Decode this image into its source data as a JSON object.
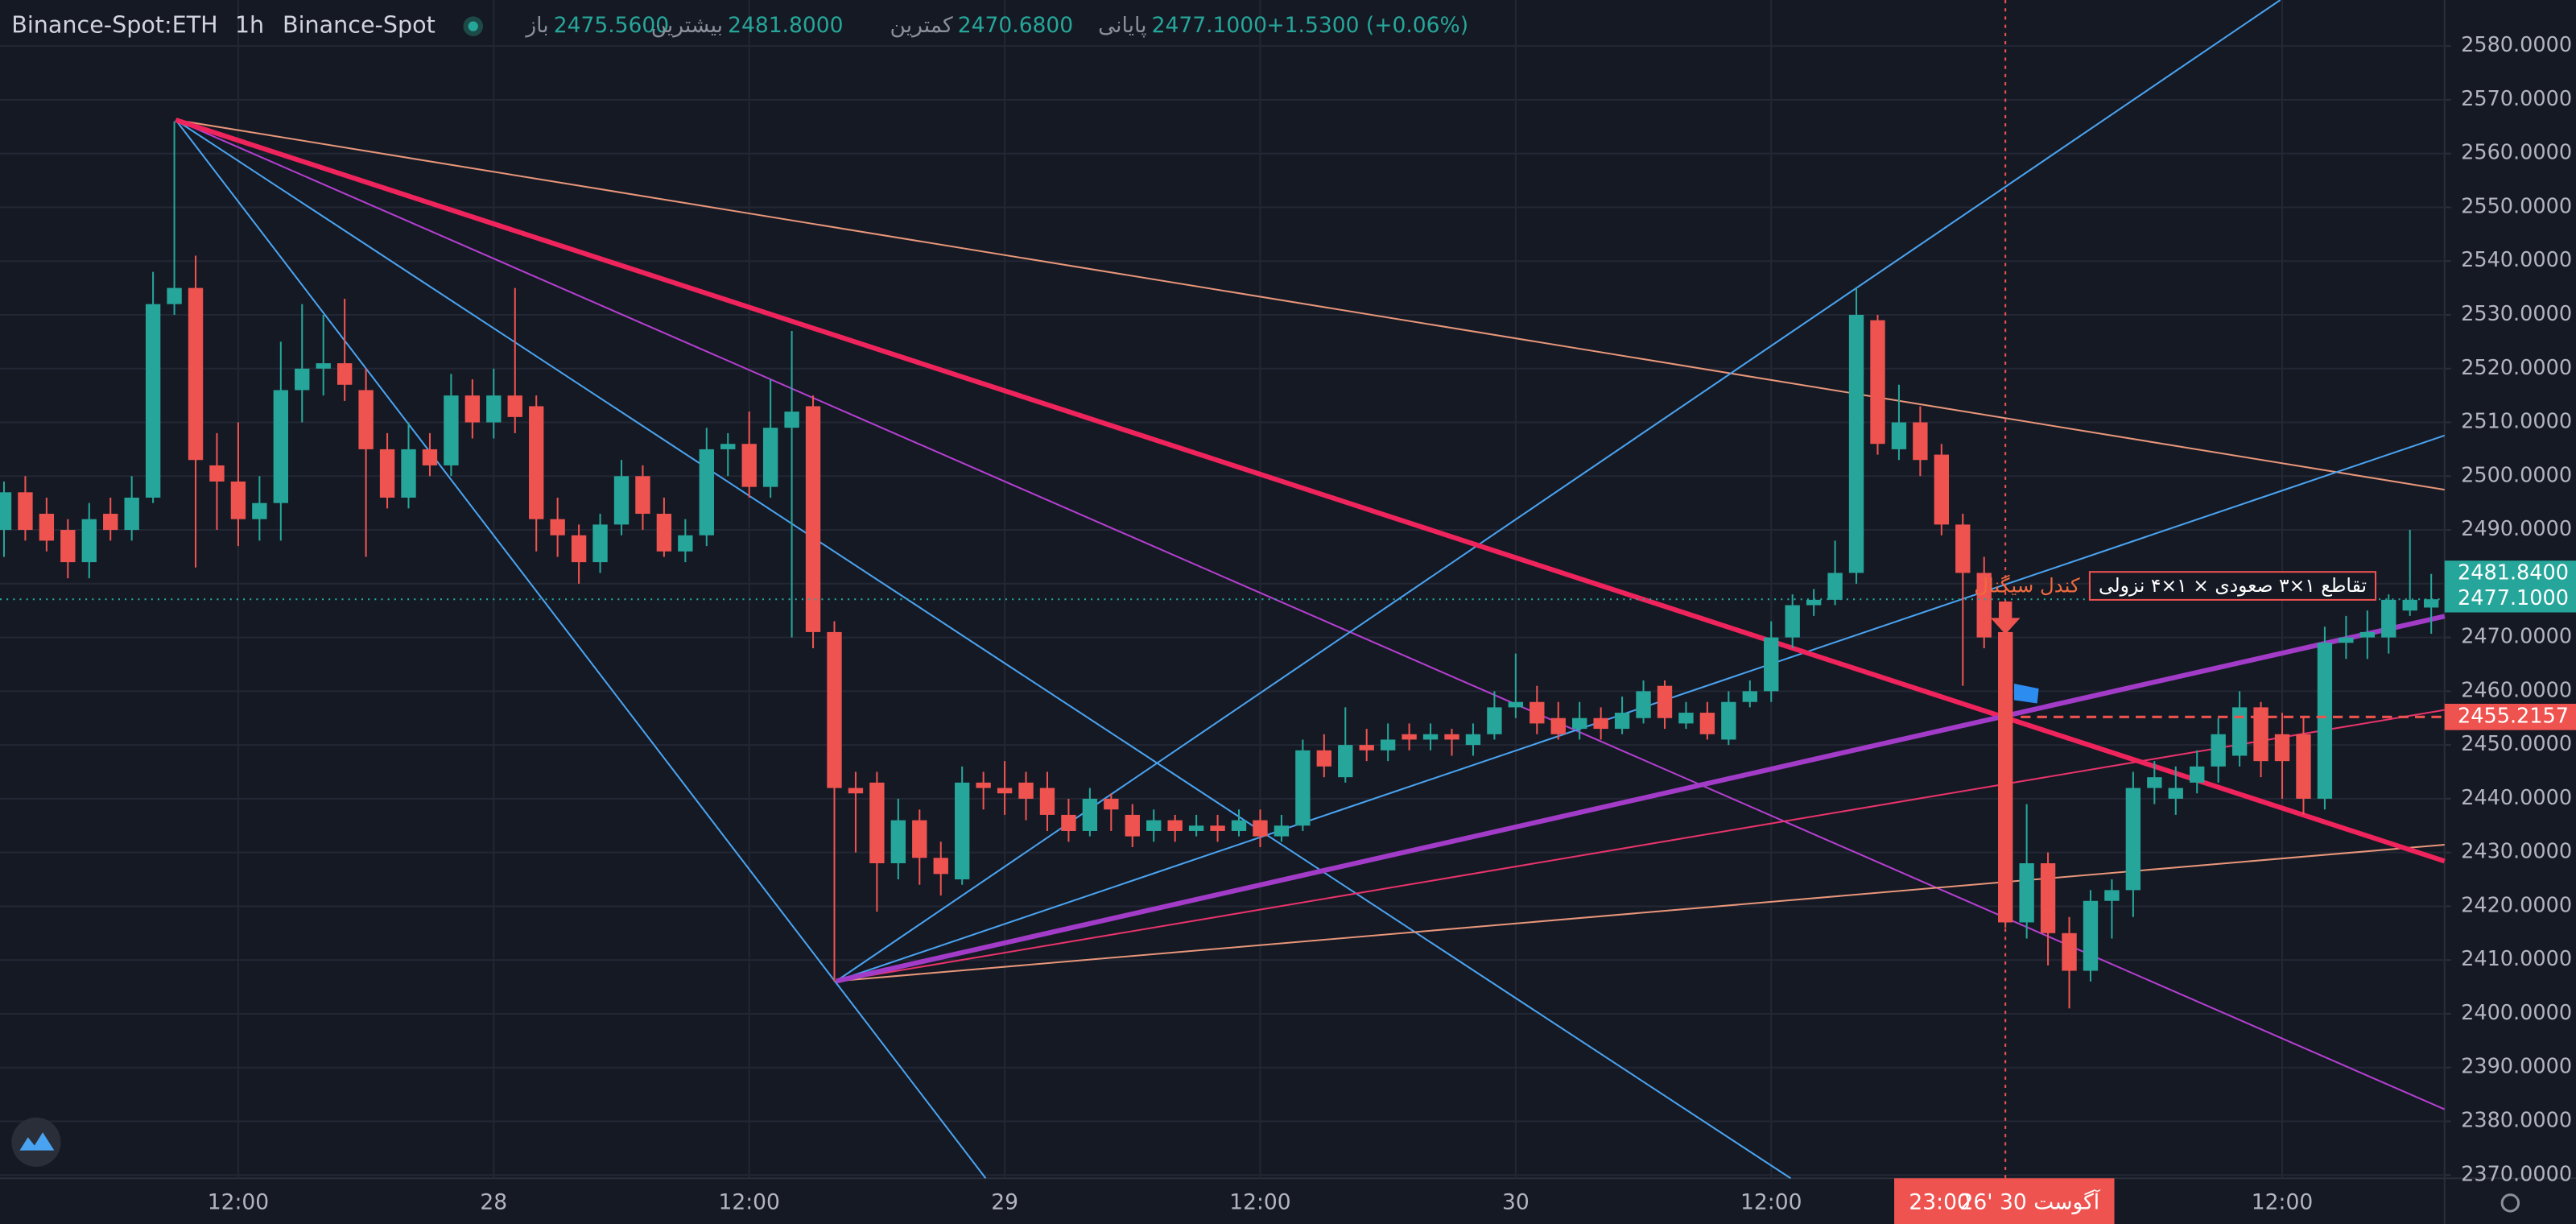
{
  "header": {
    "symbol": "Binance-Spot:ETH",
    "interval": "1h",
    "exchange": "Binance-Spot",
    "open_label": "باز",
    "open": "2475.5600",
    "high_label": "بیشترین",
    "high": "2481.8000",
    "low_label": "کمترین",
    "low": "2470.6800",
    "close_label": "پایانی",
    "close": "2477.1000",
    "change": "+1.5300 (+0.06%)"
  },
  "chart_data": {
    "type": "candlestick",
    "categories": [
      null,
      null,
      null,
      null,
      null,
      null,
      null,
      null,
      null,
      null,
      null,
      "12:00",
      null,
      null,
      null,
      null,
      null,
      null,
      null,
      null,
      null,
      null,
      null,
      "28",
      null,
      null,
      null,
      null,
      null,
      null,
      null,
      null,
      null,
      null,
      null,
      "12:00",
      null,
      null,
      null,
      null,
      null,
      null,
      null,
      null,
      null,
      null,
      null,
      "29",
      null,
      null,
      null,
      null,
      null,
      null,
      null,
      null,
      null,
      null,
      null,
      "12:00",
      null,
      null,
      null,
      null,
      null,
      null,
      null,
      null,
      null,
      null,
      null,
      "30",
      null,
      null,
      null,
      null,
      null,
      null,
      null,
      null,
      null,
      null,
      null,
      "12:00",
      null,
      null,
      null,
      null,
      null,
      null,
      null,
      null,
      null,
      null,
      null,
      null,
      null,
      null,
      null,
      null,
      null,
      null,
      null,
      null,
      null,
      null,
      null,
      "12:00",
      null,
      null,
      null,
      null,
      null,
      null,
      null
    ],
    "open": [
      2490,
      2497,
      2493,
      2490,
      2484,
      2493,
      2490,
      2496,
      2532,
      2535,
      2502,
      2499,
      2492,
      2495,
      2516,
      2520,
      2521,
      2516,
      2505,
      2496,
      2505,
      2502,
      2515,
      2510,
      2515,
      2513,
      2492,
      2489,
      2484,
      2491,
      2500,
      2493,
      2486,
      2489,
      2505,
      2506,
      2498,
      2509,
      2513,
      2471,
      2442,
      2443,
      2428,
      2436,
      2429,
      2425,
      2443,
      2442,
      2443,
      2442,
      2437,
      2434,
      2440,
      2437,
      2434,
      2436,
      2434,
      2435,
      2434,
      2436,
      2433,
      2435,
      2449,
      2444,
      2450,
      2449,
      2452,
      2451,
      2452,
      2450,
      2452,
      2457,
      2458,
      2455,
      2453,
      2455,
      2453,
      2455,
      2461,
      2454,
      2456,
      2451,
      2458,
      2460,
      2470,
      2476,
      2477,
      2482,
      2529,
      2505,
      2510,
      2504,
      2491,
      2482,
      2471,
      2417,
      2428,
      2415,
      2408,
      2421,
      2423,
      2442,
      2440,
      2443,
      2446,
      2448,
      2457,
      2452,
      2452,
      2440,
      2469,
      2470,
      2470,
      2475,
      2475.56
    ],
    "high": [
      2499,
      2500,
      2496,
      2492,
      2495,
      2496,
      2500,
      2538,
      2566,
      2541,
      2508,
      2510,
      2500,
      2525,
      2532,
      2530,
      2533,
      2520,
      2508,
      2510,
      2508,
      2519,
      2518,
      2520,
      2535,
      2515,
      2496,
      2491,
      2493,
      2503,
      2502,
      2496,
      2492,
      2509,
      2508,
      2512,
      2518,
      2527,
      2515,
      2473,
      2445,
      2445,
      2440,
      2438,
      2432,
      2446,
      2445,
      2447,
      2445,
      2445,
      2440,
      2442,
      2441,
      2439,
      2438,
      2437,
      2437,
      2437,
      2438,
      2438,
      2437,
      2451,
      2452,
      2457,
      2453,
      2454,
      2454,
      2454,
      2453,
      2454,
      2460,
      2467,
      2461,
      2458,
      2458,
      2457,
      2459,
      2462,
      2462,
      2458,
      2458,
      2460,
      2462,
      2473,
      2478,
      2479,
      2488,
      2535,
      2530,
      2517,
      2513,
      2506,
      2493,
      2485,
      2473,
      2439,
      2430,
      2418,
      2423,
      2425,
      2445,
      2447,
      2446,
      2449,
      2455,
      2460,
      2458,
      2456,
      2455,
      2472,
      2474,
      2475,
      2478,
      2490,
      2481.8
    ],
    "low": [
      2485,
      2488,
      2486,
      2481,
      2481,
      2488,
      2488,
      2495,
      2530,
      2483,
      2490,
      2487,
      2488,
      2488,
      2510,
      2515,
      2514,
      2485,
      2494,
      2494,
      2500,
      2500,
      2507,
      2507,
      2508,
      2486,
      2485,
      2480,
      2482,
      2489,
      2490,
      2485,
      2484,
      2487,
      2500,
      2496,
      2496,
      2470,
      2468,
      2406,
      2430,
      2419,
      2425,
      2424,
      2422,
      2424,
      2438,
      2437,
      2436,
      2434,
      2432,
      2433,
      2434,
      2431,
      2432,
      2432,
      2433,
      2432,
      2433,
      2431,
      2432,
      2434,
      2444,
      2443,
      2447,
      2447,
      2449,
      2449,
      2448,
      2448,
      2451,
      2455,
      2452,
      2451,
      2451,
      2451,
      2452,
      2454,
      2453,
      2453,
      2451,
      2450,
      2457,
      2458,
      2468,
      2474,
      2476,
      2480,
      2504,
      2503,
      2500,
      2489,
      2461,
      2468,
      2416,
      2414,
      2409,
      2401,
      2406,
      2414,
      2418,
      2439,
      2437,
      2441,
      2443,
      2446,
      2444,
      2440,
      2437,
      2438,
      2466,
      2466,
      2467,
      2474,
      2470.68
    ],
    "close": [
      2497,
      2490,
      2488,
      2484,
      2492,
      2490,
      2496,
      2532,
      2535,
      2503,
      2499,
      2492,
      2495,
      2516,
      2520,
      2521,
      2517,
      2505,
      2496,
      2505,
      2502,
      2515,
      2510,
      2515,
      2511,
      2492,
      2489,
      2484,
      2491,
      2500,
      2493,
      2486,
      2489,
      2505,
      2506,
      2498,
      2509,
      2512,
      2471,
      2442,
      2441,
      2428,
      2436,
      2429,
      2426,
      2443,
      2442,
      2441,
      2440,
      2437,
      2434,
      2440,
      2438,
      2433,
      2436,
      2434,
      2435,
      2434,
      2436,
      2433,
      2435,
      2449,
      2446,
      2450,
      2449,
      2451,
      2451,
      2452,
      2451,
      2452,
      2457,
      2458,
      2454,
      2452,
      2455,
      2453,
      2456,
      2460,
      2455,
      2456,
      2452,
      2458,
      2460,
      2470,
      2476,
      2477,
      2482,
      2530,
      2506,
      2510,
      2503,
      2491,
      2482,
      2470,
      2417,
      2428,
      2415,
      2408,
      2421,
      2423,
      2442,
      2444,
      2442,
      2446,
      2452,
      2457,
      2447,
      2447,
      2440,
      2469,
      2470,
      2471,
      2477,
      2477,
      2477.1
    ],
    "colors": {
      "up": "#26a69a",
      "down": "#ef5350"
    },
    "ylim": [
      2369.4,
      2588.56
    ],
    "yticks": [
      {
        "value": 2370,
        "label": "2370.0000"
      },
      {
        "value": 2380,
        "label": "2380.0000"
      },
      {
        "value": 2390,
        "label": "2390.0000"
      },
      {
        "value": 2400,
        "label": "2400.0000"
      },
      {
        "value": 2410,
        "label": "2410.0000"
      },
      {
        "value": 2420,
        "label": "2420.0000"
      },
      {
        "value": 2430,
        "label": "2430.0000"
      },
      {
        "value": 2440,
        "label": "2440.0000"
      },
      {
        "value": 2450,
        "label": "2450.0000"
      },
      {
        "value": 2460,
        "label": "2460.0000"
      },
      {
        "value": 2470,
        "label": "2470.0000"
      },
      {
        "value": 2480,
        "label": "2480.0000"
      },
      {
        "value": 2490,
        "label": "2490.0000"
      },
      {
        "value": 2500,
        "label": "2500.0000"
      },
      {
        "value": 2510,
        "label": "2510.0000"
      },
      {
        "value": 2520,
        "label": "2520.0000"
      },
      {
        "value": 2530,
        "label": "2530.0000"
      },
      {
        "value": 2540,
        "label": "2540.0000"
      },
      {
        "value": 2550,
        "label": "2550.0000"
      },
      {
        "value": 2560,
        "label": "2560.0000"
      },
      {
        "value": 2570,
        "label": "2570.0000"
      },
      {
        "value": 2580,
        "label": "2580.0000"
      }
    ],
    "grid": true,
    "price_lines": {
      "values": [
        2481.84,
        2477.1,
        2455.2157
      ],
      "value_labels": [
        "2481.8400",
        "2477.1000",
        "2455.2157"
      ],
      "colors": [
        "#26a69a",
        "#26a69a",
        "#ef5350"
      ]
    },
    "annotations": {
      "signal": "کندل سیگنال",
      "cross": "تقاطع ۱×۳ صعودی × ۱×۴ نزولی"
    },
    "crosshair": {
      "time": "23:00",
      "date": "26' آگوست 30"
    }
  }
}
